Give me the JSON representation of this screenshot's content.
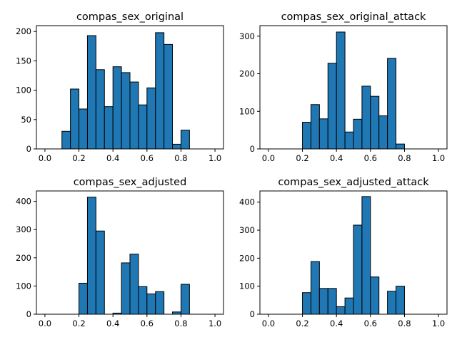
{
  "figure": {
    "background": "#ffffff",
    "bar_color": "#1f77b4",
    "edge_color": "#000000"
  },
  "chart_data": [
    {
      "type": "bar",
      "title": "compas_sex_original",
      "xlim": [
        0.0,
        1.0
      ],
      "ylim": [
        0,
        210
      ],
      "xticks": [
        0.0,
        0.2,
        0.4,
        0.6,
        0.8,
        1.0
      ],
      "xtick_labels": [
        "0.0",
        "0.2",
        "0.4",
        "0.6",
        "0.8",
        "1.0"
      ],
      "yticks": [
        0,
        50,
        100,
        150,
        200
      ],
      "ytick_labels": [
        "0",
        "50",
        "100",
        "150",
        "200"
      ],
      "bin_width": 0.05,
      "bins": [
        0.0,
        0.05,
        0.1,
        0.15,
        0.2,
        0.25,
        0.3,
        0.35,
        0.4,
        0.45,
        0.5,
        0.55,
        0.6,
        0.65,
        0.7,
        0.75,
        0.8,
        0.85,
        0.9,
        0.95
      ],
      "values": [
        0,
        0,
        30,
        102,
        68,
        193,
        135,
        72,
        140,
        130,
        114,
        75,
        104,
        198,
        178,
        8,
        32,
        0,
        0,
        0
      ]
    },
    {
      "type": "bar",
      "title": "compas_sex_original_attack",
      "xlim": [
        0.0,
        1.0
      ],
      "ylim": [
        0,
        328
      ],
      "xticks": [
        0.0,
        0.2,
        0.4,
        0.6,
        0.8,
        1.0
      ],
      "xtick_labels": [
        "0.0",
        "0.2",
        "0.4",
        "0.6",
        "0.8",
        "1.0"
      ],
      "yticks": [
        0,
        100,
        200,
        300
      ],
      "ytick_labels": [
        "0",
        "100",
        "200",
        "300"
      ],
      "bin_width": 0.05,
      "bins": [
        0.0,
        0.05,
        0.1,
        0.15,
        0.2,
        0.25,
        0.3,
        0.35,
        0.4,
        0.45,
        0.5,
        0.55,
        0.6,
        0.65,
        0.7,
        0.75,
        0.8,
        0.85,
        0.9,
        0.95
      ],
      "values": [
        0,
        0,
        0,
        0,
        71,
        118,
        80,
        228,
        311,
        45,
        79,
        167,
        140,
        88,
        241,
        13,
        0,
        0,
        0,
        0
      ]
    },
    {
      "type": "bar",
      "title": "compas_sex_adjusted",
      "xlim": [
        0.0,
        1.0
      ],
      "ylim": [
        0,
        437
      ],
      "xticks": [
        0.0,
        0.2,
        0.4,
        0.6,
        0.8,
        1.0
      ],
      "xtick_labels": [
        "0.0",
        "0.2",
        "0.4",
        "0.6",
        "0.8",
        "1.0"
      ],
      "yticks": [
        0,
        100,
        200,
        300,
        400
      ],
      "ytick_labels": [
        "0",
        "100",
        "200",
        "300",
        "400"
      ],
      "bin_width": 0.05,
      "bins": [
        0.0,
        0.05,
        0.1,
        0.15,
        0.2,
        0.25,
        0.3,
        0.35,
        0.4,
        0.45,
        0.5,
        0.55,
        0.6,
        0.65,
        0.7,
        0.75,
        0.8,
        0.85,
        0.9,
        0.95
      ],
      "values": [
        0,
        0,
        0,
        0,
        110,
        415,
        295,
        0,
        4,
        182,
        213,
        98,
        72,
        80,
        0,
        8,
        106,
        0,
        0,
        0
      ]
    },
    {
      "type": "bar",
      "title": "compas_sex_adjusted_attack",
      "xlim": [
        0.0,
        1.0
      ],
      "ylim": [
        0,
        440
      ],
      "xticks": [
        0.0,
        0.2,
        0.4,
        0.6,
        0.8,
        1.0
      ],
      "xtick_labels": [
        "0.0",
        "0.2",
        "0.4",
        "0.6",
        "0.8",
        "1.0"
      ],
      "yticks": [
        0,
        100,
        200,
        300,
        400
      ],
      "ytick_labels": [
        "0",
        "100",
        "200",
        "300",
        "400"
      ],
      "bin_width": 0.05,
      "bins": [
        0.0,
        0.05,
        0.1,
        0.15,
        0.2,
        0.25,
        0.3,
        0.35,
        0.4,
        0.45,
        0.5,
        0.55,
        0.6,
        0.65,
        0.7,
        0.75,
        0.8,
        0.85,
        0.9,
        0.95
      ],
      "values": [
        0,
        0,
        0,
        0,
        77,
        188,
        92,
        92,
        27,
        58,
        318,
        420,
        133,
        0,
        82,
        100,
        0,
        0,
        0,
        0
      ]
    }
  ]
}
